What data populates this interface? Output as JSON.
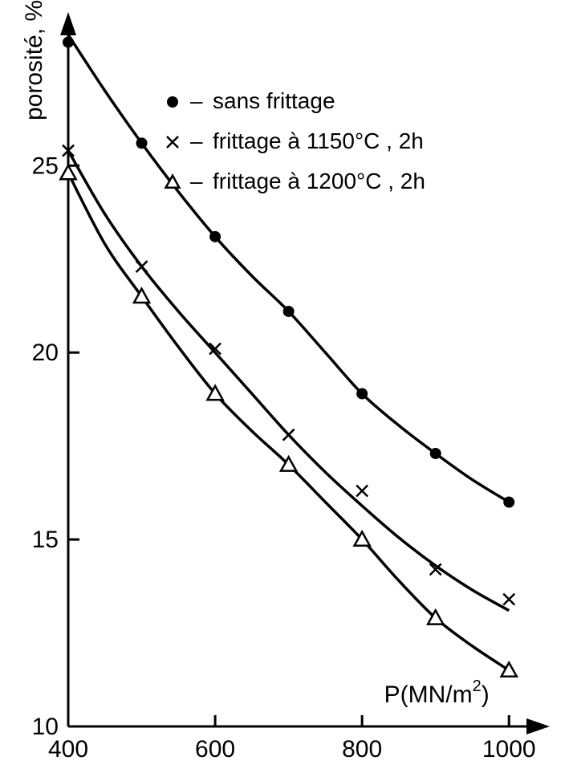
{
  "chart": {
    "type": "line",
    "background_color": "#ffffff",
    "line_color": "#000000",
    "axis_color": "#000000",
    "line_width": 3.5,
    "axis_width": 3,
    "tick_fontsize": 30,
    "legend_fontsize": 28,
    "x_axis": {
      "label": "P(MN/m²)",
      "label_raw": "P(MN/m",
      "label_exp": "2",
      "label_close": ")",
      "min": 400,
      "max": 1050,
      "ticks": [
        400,
        600,
        800,
        1000
      ],
      "tick_labels": [
        "400",
        "600",
        "800",
        "1000"
      ]
    },
    "y_axis": {
      "label": "porosité, %",
      "min": 10,
      "max": 29,
      "ticks": [
        10,
        15,
        20,
        25
      ],
      "tick_labels": [
        "10",
        "15",
        "20",
        "25"
      ]
    },
    "legend": {
      "items": [
        {
          "marker": "filled-circle",
          "dash": "–",
          "label": "sans  frittage"
        },
        {
          "marker": "cross",
          "dash": "–",
          "label": "frittage à 1150°C ,  2h"
        },
        {
          "marker": "open-triangle",
          "dash": "–",
          "label": "frittage  à 1200°C , 2h"
        }
      ]
    },
    "series": [
      {
        "name": "sans frittage",
        "marker": "filled-circle",
        "marker_size": 7,
        "points": [
          {
            "x": 400,
            "y": 28.3
          },
          {
            "x": 500,
            "y": 25.6
          },
          {
            "x": 600,
            "y": 23.1
          },
          {
            "x": 700,
            "y": 21.1
          },
          {
            "x": 800,
            "y": 18.9
          },
          {
            "x": 900,
            "y": 17.3
          },
          {
            "x": 1000,
            "y": 16.0
          }
        ],
        "curve": [
          {
            "x": 400,
            "y": 28.5
          },
          {
            "x": 450,
            "y": 27.0
          },
          {
            "x": 500,
            "y": 25.6
          },
          {
            "x": 550,
            "y": 24.3
          },
          {
            "x": 600,
            "y": 23.1
          },
          {
            "x": 650,
            "y": 22.05
          },
          {
            "x": 700,
            "y": 21.1
          },
          {
            "x": 750,
            "y": 20.0
          },
          {
            "x": 800,
            "y": 18.9
          },
          {
            "x": 850,
            "y": 18.05
          },
          {
            "x": 900,
            "y": 17.3
          },
          {
            "x": 950,
            "y": 16.6
          },
          {
            "x": 1000,
            "y": 16.0
          }
        ]
      },
      {
        "name": "frittage 1150C 2h",
        "marker": "cross",
        "marker_size": 7,
        "points": [
          {
            "x": 400,
            "y": 25.4
          },
          {
            "x": 500,
            "y": 22.3
          },
          {
            "x": 600,
            "y": 20.1
          },
          {
            "x": 700,
            "y": 17.8
          },
          {
            "x": 800,
            "y": 16.3
          },
          {
            "x": 900,
            "y": 14.2
          },
          {
            "x": 1000,
            "y": 13.4
          }
        ],
        "curve": [
          {
            "x": 400,
            "y": 25.4
          },
          {
            "x": 450,
            "y": 23.7
          },
          {
            "x": 500,
            "y": 22.3
          },
          {
            "x": 550,
            "y": 21.1
          },
          {
            "x": 600,
            "y": 20.0
          },
          {
            "x": 650,
            "y": 18.9
          },
          {
            "x": 700,
            "y": 17.8
          },
          {
            "x": 750,
            "y": 16.8
          },
          {
            "x": 800,
            "y": 15.9
          },
          {
            "x": 850,
            "y": 15.05
          },
          {
            "x": 900,
            "y": 14.3
          },
          {
            "x": 950,
            "y": 13.65
          },
          {
            "x": 1000,
            "y": 13.1
          }
        ]
      },
      {
        "name": "frittage 1200C 2h",
        "marker": "open-triangle",
        "marker_size": 8,
        "points": [
          {
            "x": 400,
            "y": 24.8
          },
          {
            "x": 500,
            "y": 21.5
          },
          {
            "x": 600,
            "y": 18.9
          },
          {
            "x": 700,
            "y": 17.0
          },
          {
            "x": 800,
            "y": 15.0
          },
          {
            "x": 900,
            "y": 12.9
          },
          {
            "x": 1000,
            "y": 11.5
          }
        ],
        "curve": [
          {
            "x": 400,
            "y": 24.8
          },
          {
            "x": 450,
            "y": 22.9
          },
          {
            "x": 500,
            "y": 21.5
          },
          {
            "x": 550,
            "y": 20.15
          },
          {
            "x": 600,
            "y": 18.9
          },
          {
            "x": 650,
            "y": 17.9
          },
          {
            "x": 700,
            "y": 17.0
          },
          {
            "x": 750,
            "y": 16.0
          },
          {
            "x": 800,
            "y": 15.0
          },
          {
            "x": 850,
            "y": 13.9
          },
          {
            "x": 900,
            "y": 12.9
          },
          {
            "x": 950,
            "y": 12.15
          },
          {
            "x": 1000,
            "y": 11.5
          }
        ]
      }
    ]
  }
}
